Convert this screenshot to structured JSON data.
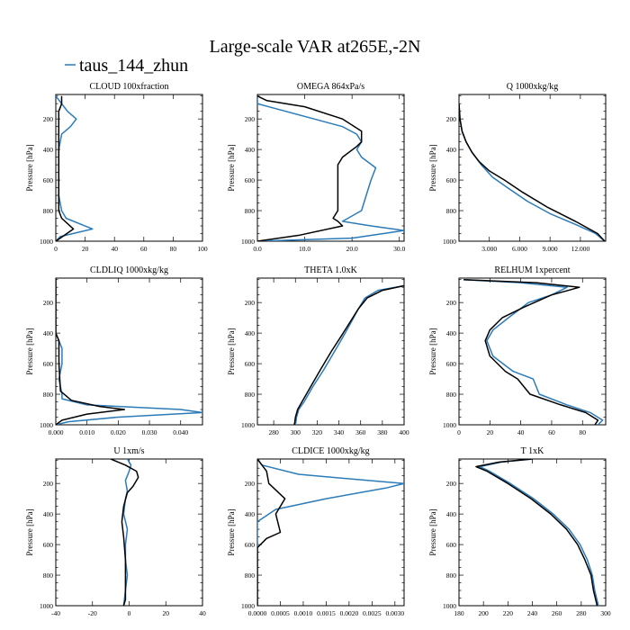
{
  "figure": {
    "title": "Large-scale VAR at265E,-2N",
    "legend_label": "taus_144_zhun",
    "legend_placement": "top-left",
    "colors": {
      "taus_144_zhun": "#2b7bb9",
      "reference": "#000000"
    }
  },
  "chart_data": [
    {
      "type": "line",
      "title": "CLOUD  100xfraction",
      "ylabel": "Pressure [hPa]",
      "xlim": [
        0,
        100
      ],
      "ylim": [
        1000,
        40
      ],
      "xticks": [
        0,
        20,
        40,
        60,
        80,
        100
      ],
      "xtick_labels": [
        "0",
        "20",
        "40",
        "60",
        "80",
        "100"
      ],
      "yticks": [
        200,
        400,
        600,
        800,
        1000
      ],
      "series": [
        {
          "name": "taus_144_zhun",
          "color": "#2b7bb9",
          "x": [
            0,
            4,
            8,
            14,
            10,
            4,
            3,
            2,
            2,
            2,
            2,
            4,
            7,
            25,
            3,
            0
          ],
          "y": [
            50,
            100,
            150,
            200,
            250,
            300,
            350,
            400,
            500,
            600,
            700,
            800,
            850,
            920,
            970,
            1000
          ]
        },
        {
          "name": "",
          "color": "#000000",
          "x": [
            4,
            4,
            2,
            2,
            2,
            2,
            2,
            2,
            2,
            4,
            12,
            3,
            0
          ],
          "y": [
            50,
            100,
            150,
            300,
            400,
            500,
            600,
            700,
            800,
            850,
            920,
            980,
            1000
          ]
        }
      ]
    },
    {
      "type": "line",
      "title": "OMEGA  864xPa/s",
      "ylabel": "Pressure [hPa]",
      "xlim": [
        0,
        31
      ],
      "ylim": [
        1000,
        40
      ],
      "xticks": [
        0,
        10,
        20,
        30
      ],
      "xtick_labels": [
        "0.0",
        "10.0",
        "20.0",
        "30.0"
      ],
      "yticks": [
        200,
        400,
        600,
        800,
        1000
      ],
      "series": [
        {
          "name": "taus_144_zhun",
          "color": "#2b7bb9",
          "x": [
            0,
            0,
            6,
            12,
            18,
            21,
            22,
            21,
            22,
            25,
            24,
            23,
            22,
            18,
            24,
            31,
            20,
            0
          ],
          "y": [
            50,
            100,
            150,
            200,
            250,
            300,
            350,
            400,
            450,
            520,
            600,
            700,
            800,
            870,
            900,
            930,
            980,
            1000
          ]
        },
        {
          "name": "",
          "color": "#000000",
          "x": [
            0,
            2,
            10,
            18,
            22,
            22,
            21,
            18,
            17,
            17,
            17,
            17,
            16,
            17,
            18,
            9,
            0
          ],
          "y": [
            50,
            80,
            120,
            200,
            280,
            350,
            380,
            450,
            500,
            600,
            700,
            800,
            850,
            870,
            900,
            960,
            1000
          ]
        }
      ]
    },
    {
      "type": "line",
      "title": "Q  1000xkg/kg",
      "ylabel": "Pressure [hPa]",
      "xlim": [
        0,
        14.5
      ],
      "ylim": [
        1000,
        40
      ],
      "xticks": [
        3,
        6,
        9,
        12
      ],
      "xtick_labels": [
        "3.000",
        "6.000",
        "9.000",
        "12.000"
      ],
      "yticks": [
        200,
        400,
        600,
        800,
        1000
      ],
      "series": [
        {
          "name": "taus_144_zhun",
          "color": "#2b7bb9",
          "x": [
            0,
            0.1,
            0.3,
            0.7,
            1.3,
            2.2,
            3.3,
            4.8,
            6.8,
            9.0,
            11.5,
            13.5,
            14.4
          ],
          "y": [
            100,
            200,
            280,
            350,
            420,
            500,
            580,
            650,
            740,
            820,
            890,
            950,
            1000
          ]
        },
        {
          "name": "",
          "color": "#000000",
          "x": [
            0,
            0.1,
            0.3,
            0.7,
            1.3,
            2.0,
            3.0,
            4.5,
            6.3,
            8.8,
            11.5,
            13.7,
            14.4
          ],
          "y": [
            100,
            200,
            280,
            350,
            420,
            480,
            540,
            600,
            680,
            780,
            870,
            950,
            1000
          ]
        }
      ]
    },
    {
      "type": "line",
      "title": "CLDLIQ  1000xkg/kg",
      "ylabel": "Pressure [hPa]",
      "xlim": [
        0,
        0.047
      ],
      "ylim": [
        1000,
        40
      ],
      "xticks": [
        0,
        0.01,
        0.02,
        0.03,
        0.04
      ],
      "xtick_labels": [
        "0.000",
        "0.010",
        "0.020",
        "0.030",
        "0.040"
      ],
      "yticks": [
        200,
        400,
        600,
        800,
        1000
      ],
      "series": [
        {
          "name": "taus_144_zhun",
          "color": "#2b7bb9",
          "x": [
            0,
            0,
            0.001,
            0.002,
            0.002,
            0.001,
            0.002,
            0.002,
            0.01,
            0.04,
            0.047,
            0.02,
            0.004,
            0
          ],
          "y": [
            40,
            400,
            450,
            500,
            600,
            700,
            800,
            830,
            870,
            900,
            920,
            950,
            980,
            1000
          ]
        },
        {
          "name": "",
          "color": "#000000",
          "x": [
            0,
            0,
            0.001,
            0.001,
            0.0015,
            0.005,
            0.014,
            0.022,
            0.01,
            0.002,
            0
          ],
          "y": [
            40,
            400,
            450,
            600,
            780,
            840,
            880,
            900,
            930,
            970,
            1000
          ]
        }
      ]
    },
    {
      "type": "line",
      "title": "THETA  1.0xK",
      "ylabel": "Pressure [hPa]",
      "xlim": [
        265,
        400
      ],
      "ylim": [
        1000,
        40
      ],
      "xticks": [
        280,
        300,
        320,
        340,
        360,
        380,
        400
      ],
      "xtick_labels": [
        "280",
        "300",
        "320",
        "340",
        "360",
        "380",
        "400"
      ],
      "yticks": [
        200,
        400,
        600,
        800,
        1000
      ],
      "series": [
        {
          "name": "taus_144_zhun",
          "color": "#2b7bb9",
          "x": [
            300,
            301,
            303,
            308,
            316,
            326,
            336,
            345,
            352,
            358,
            364,
            376,
            400
          ],
          "y": [
            1000,
            950,
            900,
            850,
            750,
            640,
            520,
            410,
            320,
            240,
            170,
            120,
            90
          ]
        },
        {
          "name": "",
          "color": "#000000",
          "x": [
            299,
            300,
            302,
            306,
            314,
            323,
            333,
            343,
            351,
            358,
            366,
            380,
            400
          ],
          "y": [
            1000,
            950,
            900,
            850,
            750,
            640,
            520,
            410,
            320,
            240,
            170,
            120,
            90
          ]
        }
      ]
    },
    {
      "type": "line",
      "title": "RELHUM  1xpercent",
      "ylabel": "Pressure [hPa]",
      "xlim": [
        0,
        95
      ],
      "ylim": [
        1000,
        40
      ],
      "xticks": [
        0,
        20,
        40,
        60,
        80
      ],
      "xtick_labels": [
        "0",
        "20",
        "40",
        "60",
        "80"
      ],
      "yticks": [
        200,
        400,
        600,
        800,
        1000
      ],
      "series": [
        {
          "name": "taus_144_zhun",
          "color": "#2b7bb9",
          "x": [
            3,
            40,
            70,
            60,
            45,
            32,
            22,
            18,
            22,
            35,
            48,
            52,
            70,
            85,
            93,
            90
          ],
          "y": [
            50,
            70,
            100,
            150,
            200,
            300,
            380,
            450,
            550,
            650,
            700,
            800,
            870,
            920,
            970,
            1000
          ]
        },
        {
          "name": "",
          "color": "#000000",
          "x": [
            3,
            50,
            78,
            60,
            42,
            28,
            20,
            17,
            20,
            30,
            38,
            46,
            66,
            82,
            90,
            88
          ],
          "y": [
            50,
            70,
            100,
            150,
            230,
            300,
            380,
            450,
            550,
            650,
            700,
            800,
            870,
            920,
            970,
            1000
          ]
        }
      ]
    },
    {
      "type": "line",
      "title": "U  1xm/s",
      "ylabel": "Pressure [hPa]",
      "xlim": [
        -40,
        40
      ],
      "ylim": [
        1000,
        40
      ],
      "xticks": [
        -40,
        -20,
        0,
        20,
        40
      ],
      "xtick_labels": [
        "-40",
        "-20",
        "0",
        "20",
        "40"
      ],
      "yticks": [
        200,
        400,
        600,
        800,
        1000
      ],
      "series": [
        {
          "name": "taus_144_zhun",
          "color": "#2b7bb9",
          "x": [
            -1,
            1,
            0,
            -2,
            -1,
            -2,
            -3,
            -1,
            -2,
            -2,
            -1,
            -2,
            -3
          ],
          "y": [
            40,
            80,
            120,
            180,
            250,
            300,
            400,
            500,
            600,
            700,
            800,
            900,
            1000
          ]
        },
        {
          "name": "",
          "color": "#000000",
          "x": [
            -10,
            -2,
            4,
            5,
            2,
            -1,
            -3,
            -4,
            -3,
            -2,
            -2,
            -2,
            -2,
            -3
          ],
          "y": [
            40,
            80,
            120,
            160,
            220,
            260,
            350,
            450,
            550,
            700,
            800,
            900,
            960,
            1000
          ]
        }
      ]
    },
    {
      "type": "line",
      "title": "CLDICE  1000xkg/kg",
      "ylabel": "Pressure [hPa]",
      "xlim": [
        0,
        0.0032
      ],
      "ylim": [
        1000,
        40
      ],
      "xticks": [
        0,
        0.0005,
        0.001,
        0.0015,
        0.002,
        0.0025,
        0.003
      ],
      "xtick_labels": [
        "0.0000",
        "0.0005",
        "0.0010",
        "0.0015",
        "0.0020",
        "0.0025",
        "0.0030"
      ],
      "yticks": [
        200,
        400,
        600,
        800,
        1000
      ],
      "series": [
        {
          "name": "taus_144_zhun",
          "color": "#2b7bb9",
          "x": [
            0,
            0.0001,
            0.0009,
            0.0024,
            0.0032,
            0.0028,
            0.0015,
            0.0004,
            0,
            0
          ],
          "y": [
            40,
            80,
            140,
            180,
            200,
            230,
            300,
            370,
            450,
            1000
          ]
        },
        {
          "name": "",
          "color": "#000000",
          "x": [
            0,
            0.0001,
            0.0002,
            0.00025,
            0.0006,
            0.0004,
            0.0005,
            0.0002,
            0,
            0
          ],
          "y": [
            40,
            80,
            120,
            200,
            300,
            400,
            520,
            560,
            620,
            1000
          ]
        }
      ]
    },
    {
      "type": "line",
      "title": "T  1xK",
      "ylabel": "Pressure [hPa]",
      "xlim": [
        180,
        300
      ],
      "ylim": [
        1000,
        40
      ],
      "xticks": [
        180,
        200,
        220,
        240,
        260,
        280,
        300
      ],
      "xtick_labels": [
        "180",
        "200",
        "220",
        "240",
        "260",
        "280",
        "300"
      ],
      "yticks": [
        200,
        400,
        600,
        800,
        1000
      ],
      "series": [
        {
          "name": "taus_144_zhun",
          "color": "#2b7bb9",
          "x": [
            240,
            215,
            197,
            205,
            222,
            241,
            257,
            270,
            279,
            285,
            289,
            291,
            294
          ],
          "y": [
            40,
            60,
            90,
            120,
            200,
            300,
            400,
            500,
            600,
            700,
            800,
            900,
            1000
          ]
        },
        {
          "name": "",
          "color": "#000000",
          "x": [
            240,
            213,
            194,
            203,
            220,
            239,
            255,
            268,
            277,
            283,
            288,
            290,
            293
          ],
          "y": [
            40,
            60,
            90,
            120,
            200,
            300,
            400,
            500,
            600,
            700,
            800,
            900,
            1000
          ]
        }
      ]
    }
  ]
}
